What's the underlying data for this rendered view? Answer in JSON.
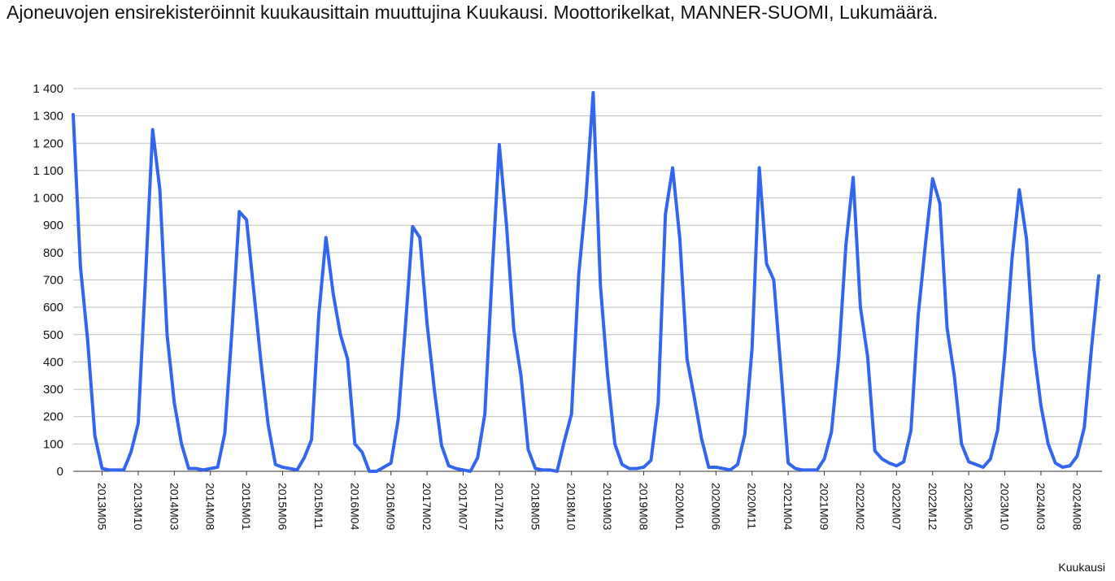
{
  "chart_data": {
    "type": "line",
    "title": "Ajoneuvojen ensirekisteröinnit kuukausittain muuttujina Kuukausi. Moottorikelkat, MANNER-SUOMI, Lukumäärä.",
    "xlabel": "Kuukausi",
    "ylabel": "",
    "ylim": [
      0,
      1400
    ],
    "yticks": [
      0,
      100,
      200,
      300,
      400,
      500,
      600,
      700,
      800,
      900,
      1000,
      1100,
      1200,
      1300,
      1400
    ],
    "ytick_labels": [
      "0",
      "100",
      "200",
      "300",
      "400",
      "500",
      "600",
      "700",
      "800",
      "900",
      "1 000",
      "1 100",
      "1 200",
      "1 300",
      "1 400"
    ],
    "xtick_labels": [
      "2013M05",
      "2013M10",
      "2014M03",
      "2014M08",
      "2015M01",
      "2015M06",
      "2015M11",
      "2016M04",
      "2016M09",
      "2017M02",
      "2017M07",
      "2017M12",
      "2018M05",
      "2018M10",
      "2019M03",
      "2019M08",
      "2020M01",
      "2020M06",
      "2020M11",
      "2021M04",
      "2021M09",
      "2022M02",
      "2022M07",
      "2022M12",
      "2023M05",
      "2023M10",
      "2024M03",
      "2024M08"
    ],
    "grid": true,
    "legend": "none",
    "color": "#3366ee",
    "x_start": "2013M01",
    "x_end": "2024M12",
    "values": [
      1305,
      750,
      480,
      130,
      10,
      5,
      5,
      5,
      70,
      175,
      700,
      1250,
      1030,
      500,
      250,
      100,
      10,
      10,
      5,
      10,
      15,
      140,
      520,
      950,
      920,
      660,
      400,
      170,
      25,
      15,
      10,
      5,
      50,
      115,
      570,
      855,
      650,
      500,
      410,
      100,
      70,
      0,
      0,
      15,
      30,
      190,
      530,
      895,
      855,
      540,
      300,
      95,
      20,
      10,
      5,
      0,
      50,
      210,
      720,
      1195,
      900,
      520,
      350,
      80,
      10,
      5,
      5,
      0,
      110,
      210,
      720,
      1000,
      1385,
      680,
      350,
      100,
      25,
      10,
      10,
      15,
      40,
      250,
      940,
      1110,
      850,
      410,
      270,
      120,
      15,
      15,
      10,
      5,
      25,
      135,
      450,
      1110,
      760,
      700,
      370,
      30,
      10,
      5,
      5,
      5,
      45,
      145,
      420,
      830,
      1075,
      600,
      420,
      75,
      45,
      30,
      20,
      35,
      150,
      570,
      830,
      1070,
      980,
      525,
      350,
      100,
      35,
      25,
      15,
      45,
      150,
      430,
      780,
      1030,
      850,
      450,
      240,
      100,
      30,
      15,
      20,
      55,
      160,
      450,
      715
    ]
  }
}
